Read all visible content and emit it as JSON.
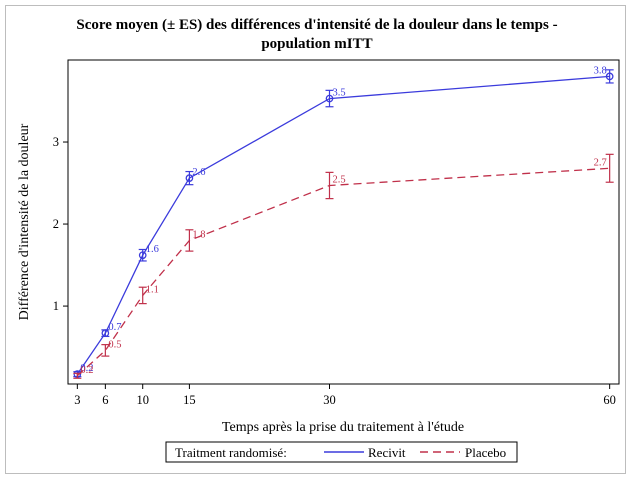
{
  "colors": {
    "recivit": "#3b3bdc",
    "placebo": "#c0304a"
  },
  "chart_data": {
    "type": "line",
    "title": [
      "Score moyen (± ES) des différences d'intensité de la douleur dans le temps -",
      "population mITT"
    ],
    "xlabel": "Temps après la prise du traitement à l'étude",
    "ylabel": "Différence d'intensité de la douleur",
    "x": [
      3,
      6,
      10,
      15,
      30,
      60
    ],
    "xticks": [
      "3",
      "6",
      "10",
      "15",
      "30",
      "60"
    ],
    "yticks": [
      "1",
      "2",
      "3"
    ],
    "xlim": [
      2,
      61
    ],
    "ylim": [
      0.05,
      4.0
    ],
    "grid": false,
    "legend_title": "Traitment randomisé:",
    "legend_position": "bottom",
    "series": [
      {
        "name": "Recivit",
        "style": "solid",
        "marker": "circle",
        "values": [
          0.17,
          0.67,
          1.62,
          2.56,
          3.53,
          3.8
        ],
        "errors": [
          0.03,
          0.04,
          0.07,
          0.08,
          0.1,
          0.08
        ],
        "labels": [
          "0.2",
          "0.7",
          "1.6",
          "2.6",
          "3.5",
          "3.8"
        ]
      },
      {
        "name": "Placebo",
        "style": "dashed",
        "marker": "none",
        "values": [
          0.15,
          0.46,
          1.13,
          1.8,
          2.47,
          2.68
        ],
        "errors": [
          0.03,
          0.07,
          0.1,
          0.13,
          0.16,
          0.17
        ],
        "labels": [
          "0.2",
          "0.5",
          "1.1",
          "1.8",
          "2.5",
          "2.7"
        ]
      }
    ]
  }
}
